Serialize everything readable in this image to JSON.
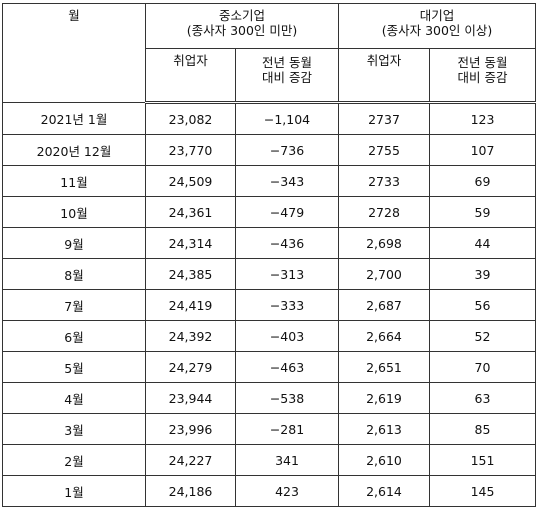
{
  "headers": {
    "month": "월",
    "sme": {
      "title": "중소기업",
      "subtitle": "(종사자 300인 미만)"
    },
    "large": {
      "title": "대기업",
      "subtitle": "(종사자 300인 이상)"
    },
    "employed": "취업자",
    "yoy_line1": "전년 동월",
    "yoy_line2": "대비 증감"
  },
  "rows": [
    {
      "month": "2021년 1월",
      "sme_emp": "23,082",
      "sme_yoy": "−1,104",
      "large_emp": "2737",
      "large_yoy": "123"
    },
    {
      "month": "2020년 12월",
      "sme_emp": "23,770",
      "sme_yoy": "−736",
      "large_emp": "2755",
      "large_yoy": "107"
    },
    {
      "month": "11월",
      "sme_emp": "24,509",
      "sme_yoy": "−343",
      "large_emp": "2733",
      "large_yoy": "69"
    },
    {
      "month": "10월",
      "sme_emp": "24,361",
      "sme_yoy": "−479",
      "large_emp": "2728",
      "large_yoy": "59"
    },
    {
      "month": "9월",
      "sme_emp": "24,314",
      "sme_yoy": "−436",
      "large_emp": "2,698",
      "large_yoy": "44"
    },
    {
      "month": "8월",
      "sme_emp": "24,385",
      "sme_yoy": "−313",
      "large_emp": "2,700",
      "large_yoy": "39"
    },
    {
      "month": "7월",
      "sme_emp": "24,419",
      "sme_yoy": "−333",
      "large_emp": "2,687",
      "large_yoy": "56"
    },
    {
      "month": "6월",
      "sme_emp": "24,392",
      "sme_yoy": "−403",
      "large_emp": "2,664",
      "large_yoy": "52"
    },
    {
      "month": "5월",
      "sme_emp": "24,279",
      "sme_yoy": "−463",
      "large_emp": "2,651",
      "large_yoy": "70"
    },
    {
      "month": "4월",
      "sme_emp": "23,944",
      "sme_yoy": "−538",
      "large_emp": "2,619",
      "large_yoy": "63"
    },
    {
      "month": "3월",
      "sme_emp": "23,996",
      "sme_yoy": "−281",
      "large_emp": "2,613",
      "large_yoy": "85"
    },
    {
      "month": "2월",
      "sme_emp": "24,227",
      "sme_yoy": "341",
      "large_emp": "2,610",
      "large_yoy": "151"
    },
    {
      "month": "1월",
      "sme_emp": "24,186",
      "sme_yoy": "423",
      "large_emp": "2,614",
      "large_yoy": "145"
    }
  ]
}
